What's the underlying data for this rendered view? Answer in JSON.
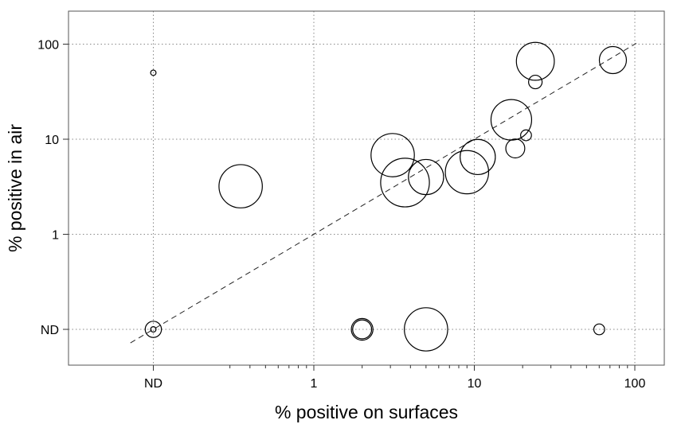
{
  "chart_data": {
    "type": "scatter",
    "title": "",
    "xlabel": "% positive on surfaces",
    "ylabel": "% positive in air",
    "x_scale": "log",
    "y_scale": "log",
    "xlim": [
      0.05,
      130
    ],
    "ylim": [
      0.05,
      130
    ],
    "x_ticks": [
      {
        "value": 0.1,
        "label": "ND"
      },
      {
        "value": 1,
        "label": "1"
      },
      {
        "value": 10,
        "label": "10"
      },
      {
        "value": 100,
        "label": "100"
      }
    ],
    "y_ticks": [
      {
        "value": 0.1,
        "label": "ND"
      },
      {
        "value": 1,
        "label": "1"
      },
      {
        "value": 10,
        "label": "10"
      },
      {
        "value": 100,
        "label": "100"
      }
    ],
    "grid": true,
    "reference_line": {
      "type": "identity",
      "style": "dashed"
    },
    "marker": "open circle, size proportional to sample size",
    "points": [
      {
        "x": 0.1,
        "y": 50,
        "size": 1
      },
      {
        "x": 0.1,
        "y": 0.1,
        "size": 3
      },
      {
        "x": 0.1,
        "y": 0.1,
        "size": 1
      },
      {
        "x": 0.35,
        "y": 3.2,
        "size": 8
      },
      {
        "x": 2,
        "y": 0.1,
        "size": 4
      },
      {
        "x": 2,
        "y": 0.1,
        "size": 3.5
      },
      {
        "x": 3.1,
        "y": 6.8,
        "size": 8
      },
      {
        "x": 3.7,
        "y": 3.5,
        "size": 9
      },
      {
        "x": 5,
        "y": 4,
        "size": 6.5
      },
      {
        "x": 5,
        "y": 0.1,
        "size": 8
      },
      {
        "x": 9,
        "y": 4.5,
        "size": 8
      },
      {
        "x": 10.5,
        "y": 6.5,
        "size": 6.5
      },
      {
        "x": 17,
        "y": 16,
        "size": 7.5
      },
      {
        "x": 18,
        "y": 8,
        "size": 3.5
      },
      {
        "x": 21,
        "y": 11,
        "size": 2
      },
      {
        "x": 24,
        "y": 66,
        "size": 7
      },
      {
        "x": 24,
        "y": 40,
        "size": 2.5
      },
      {
        "x": 60,
        "y": 0.1,
        "size": 2
      },
      {
        "x": 73,
        "y": 68,
        "size": 5
      }
    ]
  }
}
